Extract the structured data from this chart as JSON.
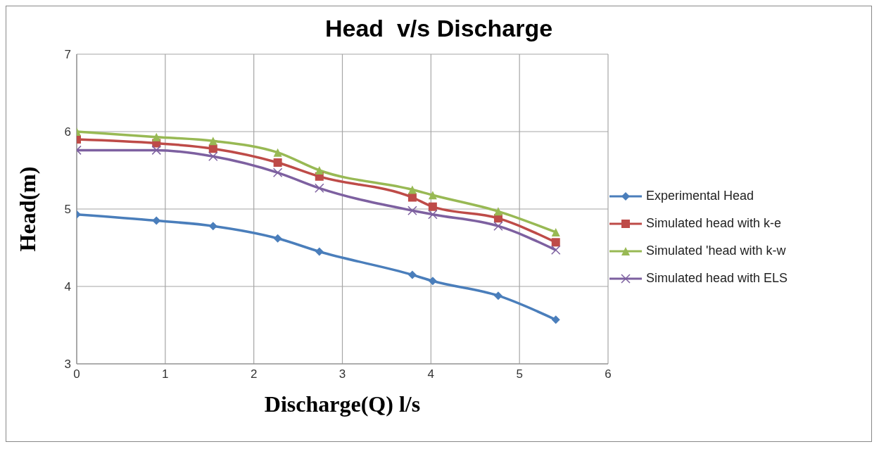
{
  "chart_data": {
    "type": "line",
    "title": "Head  v/s Discharge",
    "xlabel": "Discharge(Q) l/s",
    "ylabel": "Head(m)",
    "x": [
      0,
      0.9,
      1.54,
      2.27,
      2.74,
      3.79,
      4.02,
      4.76,
      5.41
    ],
    "series": [
      {
        "name": "Experimental Head",
        "color": "#4a7ebb",
        "marker": "diamond",
        "values": [
          4.93,
          4.85,
          4.78,
          4.62,
          4.45,
          4.15,
          4.07,
          3.88,
          3.57
        ]
      },
      {
        "name": "Simulated head with k-e",
        "color": "#be4b48",
        "marker": "square",
        "values": [
          5.9,
          5.85,
          5.78,
          5.6,
          5.42,
          5.15,
          5.03,
          4.88,
          4.57
        ]
      },
      {
        "name": "Simulated 'head with k-w",
        "color": "#98b954",
        "marker": "triangle",
        "values": [
          6.0,
          5.93,
          5.88,
          5.73,
          5.5,
          5.25,
          5.18,
          4.97,
          4.7
        ]
      },
      {
        "name": "Simulated head with ELS",
        "color": "#7d60a0",
        "marker": "cross",
        "values": [
          5.76,
          5.76,
          5.68,
          5.47,
          5.27,
          4.98,
          4.93,
          4.78,
          4.47
        ]
      }
    ],
    "xlim": [
      0,
      6
    ],
    "xticks": [
      0,
      1,
      2,
      3,
      4,
      5,
      6
    ],
    "ylim": [
      3,
      7
    ],
    "yticks": [
      3,
      4,
      5,
      6,
      7
    ],
    "grid": true,
    "legend": "right",
    "line_style": "solid"
  }
}
